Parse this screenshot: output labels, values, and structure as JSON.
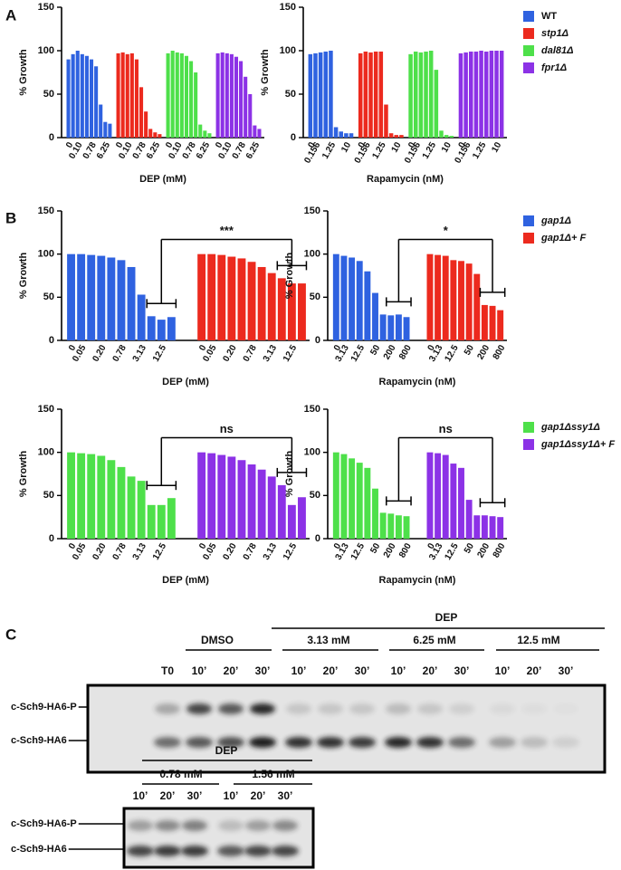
{
  "panels": [
    "A",
    "B",
    "C"
  ],
  "chart_data": [
    {
      "type": "bar",
      "x_label": "DEP (mM)",
      "y_label": "% Growth",
      "categories": [
        "0",
        null,
        "0.10",
        null,
        null,
        "0.78",
        null,
        null,
        "6.25",
        null
      ],
      "ylim": [
        0,
        150
      ],
      "yticks": [
        0,
        50,
        100,
        150
      ],
      "series": [
        {
          "name": "WT",
          "color": "#2f62e0",
          "values": [
            90,
            96,
            100,
            96,
            94,
            90,
            82,
            38,
            18,
            16
          ]
        },
        {
          "name": "stp1Δ",
          "color": "#ec2a1e",
          "values": [
            97,
            98,
            96,
            97,
            90,
            58,
            30,
            10,
            6,
            4
          ]
        },
        {
          "name": "dal81Δ",
          "color": "#4ee04a",
          "values": [
            97,
            100,
            98,
            97,
            94,
            88,
            75,
            15,
            8,
            5
          ]
        },
        {
          "name": "fpr1Δ",
          "color": "#8c32e6",
          "values": [
            97,
            98,
            97,
            96,
            93,
            88,
            70,
            50,
            14,
            10
          ]
        }
      ]
    },
    {
      "type": "bar",
      "x_label": "Rapamycin (nM)",
      "y_label": "% Growth",
      "categories": [
        "0",
        "0.156",
        null,
        null,
        "1.25",
        null,
        null,
        "10",
        null
      ],
      "ylim": [
        0,
        150
      ],
      "yticks": [
        0,
        50,
        100,
        150
      ],
      "series": [
        {
          "color": "#2f62e0",
          "values": [
            96,
            97,
            98,
            99,
            100,
            12,
            7,
            5,
            5
          ]
        },
        {
          "color": "#ec2a1e",
          "values": [
            97,
            99,
            98,
            99,
            99,
            38,
            5,
            3,
            3
          ]
        },
        {
          "color": "#4ee04a",
          "values": [
            96,
            99,
            98,
            99,
            100,
            78,
            8,
            3,
            2
          ]
        },
        {
          "color": "#8c32e6",
          "values": [
            97,
            98,
            99,
            99,
            100,
            99,
            100,
            100,
            100
          ]
        }
      ]
    },
    {
      "type": "bar",
      "x_label": "DEP (mM)",
      "y_label": "% Growth",
      "annotation": "***",
      "categories": [
        "0",
        "0.05",
        null,
        "0.20",
        null,
        "0.78",
        null,
        "3.13",
        null,
        "12.5",
        null
      ],
      "ylim": [
        0,
        150
      ],
      "yticks": [
        0,
        50,
        100,
        150
      ],
      "series": [
        {
          "name": "gap1Δ",
          "color": "#2f62e0",
          "values": [
            100,
            100,
            99,
            98,
            96,
            93,
            85,
            53,
            28,
            24,
            27
          ]
        },
        {
          "name": "gap1Δ+ F",
          "color": "#ec2a1e",
          "values": [
            100,
            100,
            99,
            97,
            95,
            91,
            85,
            78,
            72,
            66,
            66
          ]
        }
      ]
    },
    {
      "type": "bar",
      "x_label": "Rapamycin (nM)",
      "y_label": "% Growth",
      "annotation": "*",
      "categories": [
        "0",
        "3.13",
        null,
        "12.5",
        null,
        "50",
        null,
        "200",
        null,
        "800"
      ],
      "ylim": [
        0,
        150
      ],
      "yticks": [
        0,
        50,
        100,
        150
      ],
      "series": [
        {
          "color": "#2f62e0",
          "values": [
            100,
            98,
            96,
            92,
            80,
            55,
            30,
            29,
            30,
            27
          ]
        },
        {
          "color": "#ec2a1e",
          "values": [
            100,
            99,
            98,
            93,
            92,
            89,
            77,
            41,
            40,
            35
          ]
        }
      ]
    },
    {
      "type": "bar",
      "x_label": "DEP (mM)",
      "y_label": "% Growth",
      "annotation": "ns",
      "categories": [
        "0",
        "0.05",
        null,
        "0.20",
        null,
        "0.78",
        null,
        "3.13",
        null,
        "12.5",
        null
      ],
      "ylim": [
        0,
        150
      ],
      "yticks": [
        0,
        50,
        100,
        150
      ],
      "series": [
        {
          "name": "gap1Δssy1Δ",
          "color": "#4ee04a",
          "values": [
            100,
            99,
            98,
            96,
            91,
            83,
            72,
            67,
            39,
            39,
            47
          ]
        },
        {
          "name": "gap1Δssy1Δ+ F",
          "color": "#8c32e6",
          "values": [
            100,
            99,
            97,
            95,
            91,
            86,
            80,
            72,
            62,
            39,
            48
          ]
        }
      ]
    },
    {
      "type": "bar",
      "x_label": "Rapamycin (nM)",
      "y_label": "% Growth",
      "annotation": "ns",
      "categories": [
        "0",
        "3.13",
        null,
        "12.5",
        null,
        "50",
        null,
        "200",
        null,
        "800"
      ],
      "ylim": [
        0,
        150
      ],
      "yticks": [
        0,
        50,
        100,
        150
      ],
      "series": [
        {
          "color": "#4ee04a",
          "values": [
            100,
            98,
            93,
            88,
            82,
            58,
            30,
            29,
            27,
            26
          ]
        },
        {
          "color": "#8c32e6",
          "values": [
            100,
            99,
            97,
            87,
            82,
            45,
            27,
            27,
            26,
            25
          ]
        }
      ]
    }
  ],
  "blots": [
    {
      "treatment": "DEP",
      "groups": [
        "DMSO",
        "3.13 mM",
        "6.25 mM",
        "12.5 mM"
      ],
      "lanes": [
        "T0",
        "10’",
        "20’",
        "30’",
        "10’",
        "20’",
        "30’",
        "10’",
        "20’",
        "30’",
        "10’",
        "20’",
        "30’"
      ],
      "bands": [
        "c-Sch9-HA6-P",
        "c-Sch9-HA6"
      ]
    },
    {
      "treatment": "DEP",
      "groups": [
        "0.78 mM",
        "1.56 mM"
      ],
      "lanes": [
        "10’",
        "20’",
        "30’",
        "10’",
        "20’",
        "30’"
      ],
      "bands": [
        "c-Sch9-HA6-P",
        "c-Sch9-HA6"
      ]
    }
  ]
}
